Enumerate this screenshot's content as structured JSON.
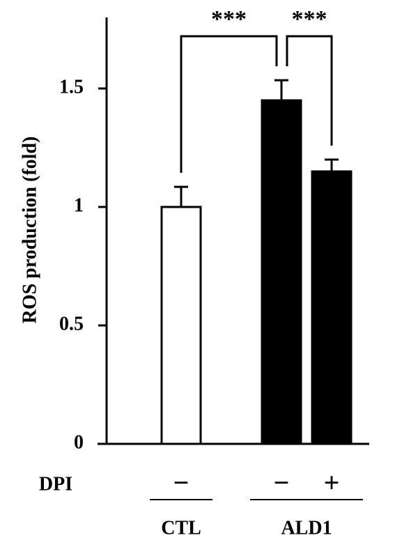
{
  "chart_data": {
    "type": "bar",
    "y_label": "ROS production (fold)",
    "row_label": "DPI",
    "groups": [
      {
        "label": "CTL",
        "categories": [
          "−"
        ]
      },
      {
        "label": "ALD1",
        "categories": [
          "−",
          "+"
        ]
      }
    ],
    "values": [
      1.0,
      1.45,
      1.15
    ],
    "errors": [
      0.085,
      0.085,
      0.05
    ],
    "colors": [
      "#ffffff",
      "#000000",
      "#000000"
    ],
    "comparisons": [
      "***",
      "***"
    ],
    "ylim": [
      0,
      1.8
    ],
    "yticks": [
      0,
      0.5,
      1,
      1.5
    ]
  }
}
